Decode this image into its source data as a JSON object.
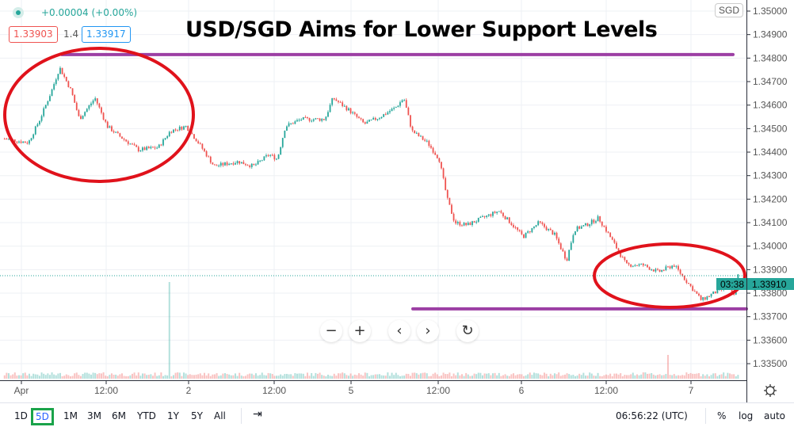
{
  "header": {
    "change": "+0.00004 (+0.00%)",
    "sell_price": "1.33903",
    "spread": "1.4",
    "buy_price": "1.33917",
    "currency": "SGD"
  },
  "annotation": {
    "title": "USD/SGD Aims for Lower Support Levels",
    "resistance_level": 1.34815,
    "support_level": 1.33733,
    "annotation_colors": {
      "lines": "#9c3fa4",
      "circles": "#e0121b"
    }
  },
  "nav_buttons": {
    "zoom_out": "−",
    "zoom_in": "+",
    "scroll_left": "‹",
    "scroll_right": "›",
    "reset": "↻"
  },
  "price_label": {
    "price": "1.33910",
    "countdown": "03:38"
  },
  "bottom_bar": {
    "ranges": [
      "1D",
      "5D",
      "1M",
      "3M",
      "6M",
      "YTD",
      "1Y",
      "5Y",
      "All"
    ],
    "selected_range": "5D",
    "clock": "06:56:22 (UTC)",
    "percent": "%",
    "log": "log",
    "auto": "auto",
    "goto_icon": "calendar-goto-icon"
  },
  "chart_data": {
    "type": "candlestick",
    "symbol_currency": "SGD",
    "colors": {
      "up": "#26a69a",
      "down": "#ef5350",
      "volume": "#f7a26b"
    },
    "y_ticks": [
      "1.35000",
      "1.34900",
      "1.34800",
      "1.34700",
      "1.34600",
      "1.34500",
      "1.34400",
      "1.34300",
      "1.34200",
      "1.34100",
      "1.34000",
      "1.33900",
      "1.33800",
      "1.33700",
      "1.33600",
      "1.33500"
    ],
    "ylim": [
      1.335,
      1.35
    ],
    "x_ticks": [
      "Apr",
      "12:00",
      "2",
      "12:00",
      "5",
      "12:00",
      "6",
      "12:00",
      "7"
    ],
    "grid": true,
    "close_path": [
      [
        "Mar 31 21:30",
        1.34457
      ],
      [
        "Apr 1 01:00",
        1.3444
      ],
      [
        "Apr 1 02:40",
        1.3454
      ],
      [
        "Apr 1 04:20",
        1.3466
      ],
      [
        "Apr 1 05:30",
        1.3476
      ],
      [
        "Apr 1 07:10",
        1.3466
      ],
      [
        "Apr 1 08:20",
        1.3454
      ],
      [
        "Apr 1 10:35",
        1.3463
      ],
      [
        "Apr 1 12:20",
        1.3451
      ],
      [
        "Apr 1 14:00",
        1.3447
      ],
      [
        "Apr 1 16:50",
        1.3441
      ],
      [
        "Apr 1 19:40",
        1.3442
      ],
      [
        "Apr 1 21:25",
        1.3449
      ],
      [
        "Apr 1 23:40",
        1.3451
      ],
      [
        "Apr 2 01:25",
        1.3444
      ],
      [
        "Apr 2 03:40",
        1.3434
      ],
      [
        "Apr 2 07:05",
        1.3436
      ],
      [
        "Apr 2 09:20",
        1.3434
      ],
      [
        "Apr 2 11:35",
        1.3439
      ],
      [
        "Apr 2 12:45",
        1.3437
      ],
      [
        "Apr 2 13:55",
        1.3451
      ],
      [
        "Apr 2 16:10",
        1.3454
      ],
      [
        "Apr 2 19:35",
        1.3454
      ],
      [
        "Apr 2 20:45",
        1.3463
      ],
      [
        "Apr 2 23:00",
        1.3458
      ],
      [
        "Apr 5 01:55",
        1.3452
      ],
      [
        "Apr 5 04:10",
        1.3455
      ],
      [
        "Apr 5 06:25",
        1.3459
      ],
      [
        "Apr 5 07:35",
        1.3463
      ],
      [
        "Apr 5 08:45",
        1.3449
      ],
      [
        "Apr 5 11:00",
        1.3444
      ],
      [
        "Apr 5 12:40",
        1.3437
      ],
      [
        "Apr 5 13:50",
        1.342
      ],
      [
        "Apr 5 14:55",
        1.341
      ],
      [
        "Apr 5 16:40",
        1.3409
      ],
      [
        "Apr 5 18:55",
        1.3412
      ],
      [
        "Apr 5 21:15",
        1.3415
      ],
      [
        "Apr 5 22:55",
        1.341
      ],
      [
        "Apr 6 00:15",
        1.3404
      ],
      [
        "Apr 6 02:30",
        1.341
      ],
      [
        "Apr 6 04:45",
        1.3405
      ],
      [
        "Apr 6 06:30",
        1.3394
      ],
      [
        "Apr 6 07:35",
        1.3407
      ],
      [
        "Apr 6 09:20",
        1.3409
      ],
      [
        "Apr 6 11:05",
        1.3412
      ],
      [
        "Apr 6 12:45",
        1.3404
      ],
      [
        "Apr 6 15:05",
        1.3392
      ],
      [
        "Apr 6 17:25",
        1.3392
      ],
      [
        "Apr 6 19:40",
        1.3389
      ],
      [
        "Apr 6 21:55",
        1.3392
      ],
      [
        "Apr 6 23:45",
        1.3385
      ],
      [
        "Apr 7 01:30",
        1.3377
      ],
      [
        "Apr 7 03:15",
        1.338
      ],
      [
        "Apr 7 05:30",
        1.3383
      ],
      [
        "Apr 7 06:05",
        1.3378
      ],
      [
        "Apr 7 06:55",
        1.3391
      ]
    ]
  }
}
